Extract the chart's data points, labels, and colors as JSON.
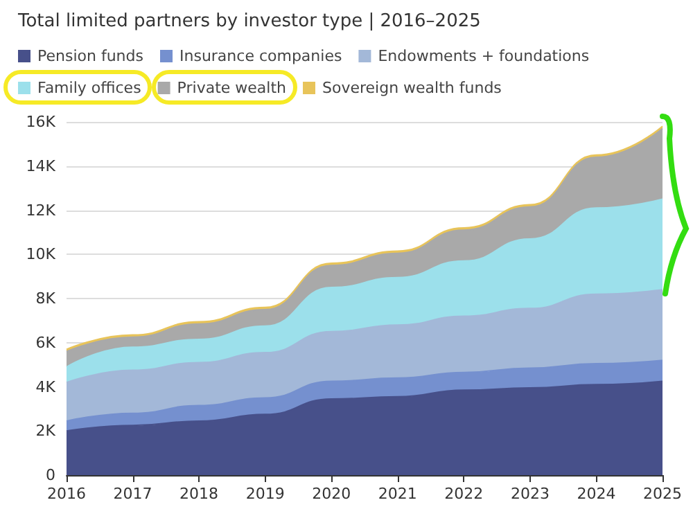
{
  "chart_data": {
    "type": "area",
    "stacked": true,
    "title": "Total limited partners by investor type | 2016–2025",
    "categories": [
      "2016",
      "2017",
      "2018",
      "2019",
      "2020",
      "2021",
      "2022",
      "2023",
      "2024",
      "2025"
    ],
    "series": [
      {
        "name": "Pension funds",
        "color": "#47508a",
        "values": [
          2000,
          2250,
          2450,
          2750,
          3450,
          3550,
          3850,
          3950,
          4100,
          4250
        ]
      },
      {
        "name": "Insurance companies",
        "color": "#7590cf",
        "values": [
          450,
          550,
          700,
          750,
          800,
          850,
          800,
          900,
          950,
          950
        ]
      },
      {
        "name": "Endowments + foundations",
        "color": "#a3b8d8",
        "values": [
          1750,
          1950,
          1950,
          2050,
          2250,
          2400,
          2550,
          2700,
          3150,
          3200
        ]
      },
      {
        "name": "Family offices",
        "color": "#9ce0eb",
        "values": [
          700,
          1050,
          1050,
          1200,
          2000,
          2150,
          2500,
          3150,
          3900,
          4100
        ]
      },
      {
        "name": "Private wealth",
        "color": "#a9a9a9",
        "values": [
          700,
          450,
          700,
          750,
          1000,
          1100,
          1400,
          1450,
          2300,
          3200
        ]
      },
      {
        "name": "Sovereign wealth funds",
        "color": "#e8c45a",
        "values": [
          100,
          100,
          100,
          100,
          100,
          100,
          100,
          100,
          100,
          100
        ]
      }
    ],
    "ylim": [
      0,
      16000
    ],
    "yticks": [
      {
        "value": 0,
        "label": "0"
      },
      {
        "value": 2000,
        "label": "2K"
      },
      {
        "value": 4000,
        "label": "4K"
      },
      {
        "value": 6000,
        "label": "6K"
      },
      {
        "value": 8000,
        "label": "8K"
      },
      {
        "value": 10000,
        "label": "10K"
      },
      {
        "value": 12000,
        "label": "12K"
      },
      {
        "value": 14000,
        "label": "14K"
      },
      {
        "value": 16000,
        "label": "16K"
      }
    ],
    "grid": "y",
    "legend": "top"
  }
}
